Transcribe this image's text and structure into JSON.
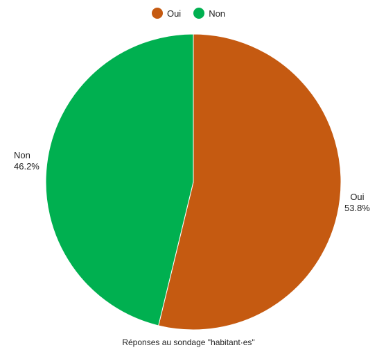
{
  "chart_data": {
    "type": "pie",
    "categories": [
      "Oui",
      "Non"
    ],
    "values": [
      53.8,
      46.2
    ],
    "value_labels": [
      "53.8%",
      "46.2%"
    ],
    "colors": [
      "#c55a11",
      "#00b050"
    ],
    "xlabel": "Réponses au sondage \"habitant·es\"",
    "legend": "top",
    "start_angle_deg": 0,
    "direction": "clockwise"
  }
}
